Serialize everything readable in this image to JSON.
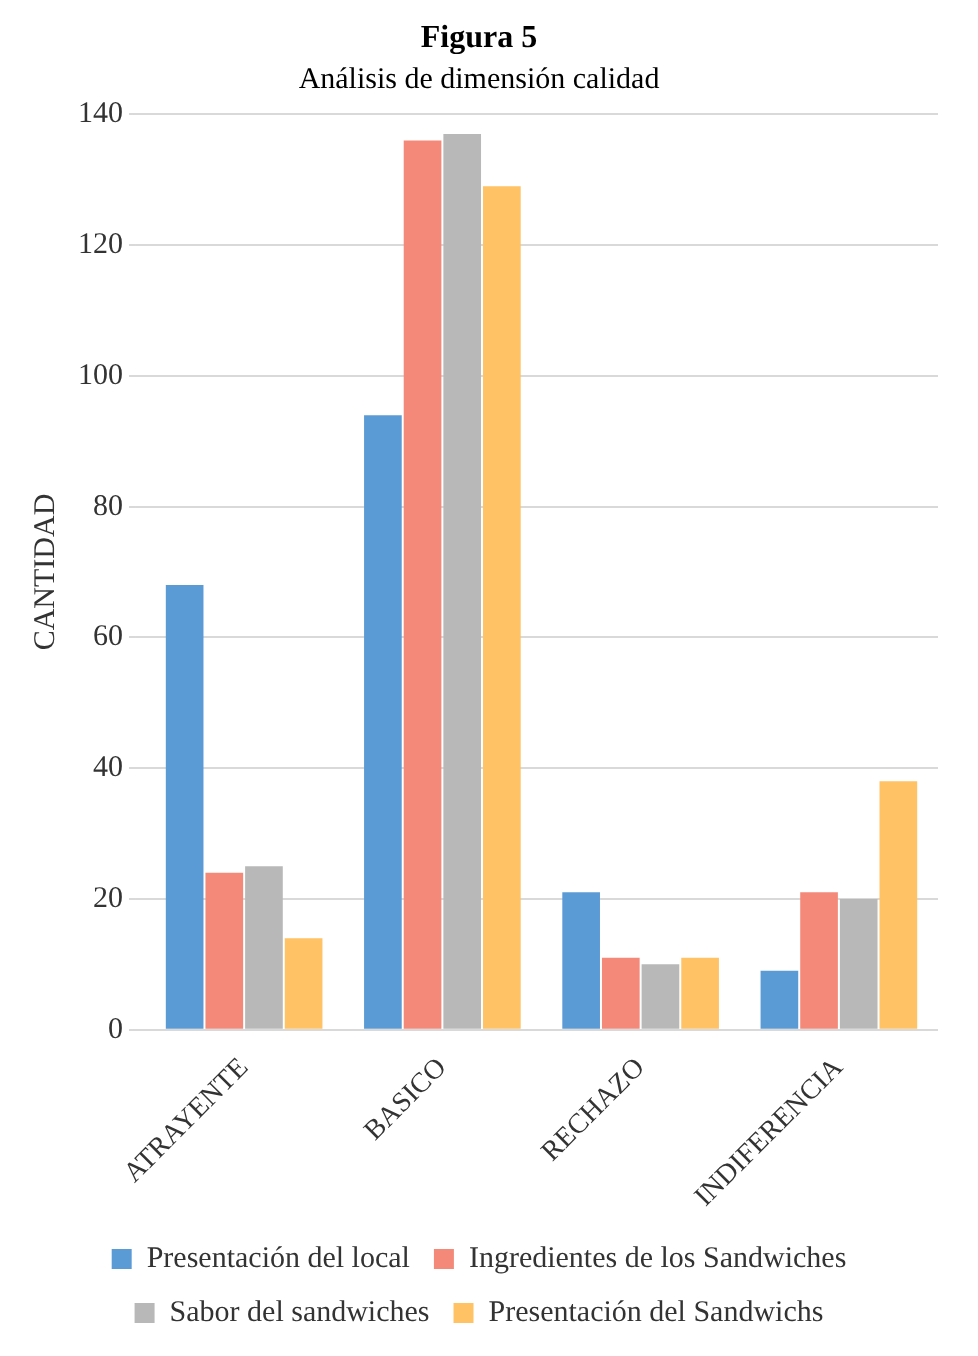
{
  "chart_data": {
    "type": "bar",
    "title": "Figura 5",
    "subtitle": "Análisis de dimensión calidad",
    "ylabel": "CANTIDAD",
    "categories": [
      "ATRAYENTE",
      "BASICO",
      "RECHAZO",
      "INDIFERENCIA"
    ],
    "series": [
      {
        "name": "Presentación del local",
        "color": "#5b9bd5",
        "values": [
          68,
          94,
          21,
          9
        ]
      },
      {
        "name": "Ingredientes de los Sandwiches",
        "color": "#f4897a",
        "values": [
          24,
          136,
          11,
          21
        ]
      },
      {
        "name": "Sabor del sandwiches",
        "color": "#b8b8b8",
        "values": [
          25,
          137,
          10,
          20
        ]
      },
      {
        "name": "Presentación del Sandwichs",
        "color": "#ffc264",
        "values": [
          14,
          129,
          11,
          38
        ]
      }
    ],
    "ylim": [
      0,
      140
    ],
    "yticks": [
      0,
      20,
      40,
      60,
      80,
      100,
      120,
      140
    ],
    "grid": "y",
    "legend": "bottom"
  }
}
